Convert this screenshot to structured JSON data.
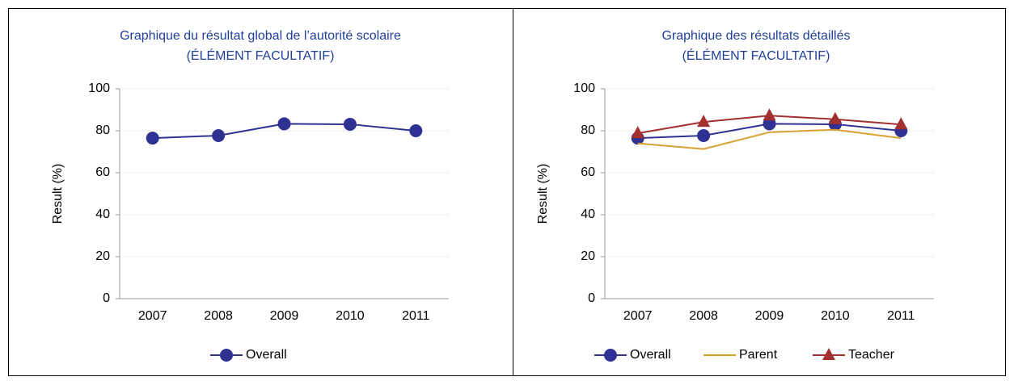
{
  "chart_data": [
    {
      "type": "line",
      "title": "Graphique du résultat global de l’autorité scolaire",
      "subtitle": "(ÉLÉMENT FACULTATIF)",
      "y_label": "Result (%)",
      "categories": [
        "2007",
        "2008",
        "2009",
        "2010",
        "2011"
      ],
      "series": [
        {
          "name": "Overall",
          "color": "#2e3192",
          "marker": "circle",
          "values": [
            76.5,
            77.7,
            83.3,
            83.1,
            80
          ]
        }
      ],
      "ylim": [
        0,
        100
      ],
      "yticks": [
        0,
        20,
        40,
        60,
        80,
        100
      ],
      "grid": true,
      "legend": "bottom"
    },
    {
      "type": "line",
      "title": "Graphique des résultats détaillés",
      "subtitle": "(ÉLÉMENT FACULTATIF)",
      "y_label": "Result (%)",
      "categories": [
        "2007",
        "2008",
        "2009",
        "2010",
        "2011"
      ],
      "series": [
        {
          "name": "Overall",
          "color": "#2e3192",
          "marker": "circle",
          "values": [
            76.5,
            77.7,
            83.3,
            83.1,
            80
          ]
        },
        {
          "name": "Parent",
          "color": "#d9a133",
          "marker": "none",
          "values": [
            74,
            71.3,
            79.3,
            80.5,
            76.5
          ]
        },
        {
          "name": "Teacher",
          "color": "#a3302f",
          "marker": "triangle",
          "values": [
            78.8,
            84.2,
            87.2,
            85.5,
            83
          ]
        }
      ],
      "ylim": [
        0,
        100
      ],
      "yticks": [
        0,
        20,
        40,
        60,
        80,
        100
      ],
      "grid": true,
      "legend": "bottom"
    }
  ]
}
